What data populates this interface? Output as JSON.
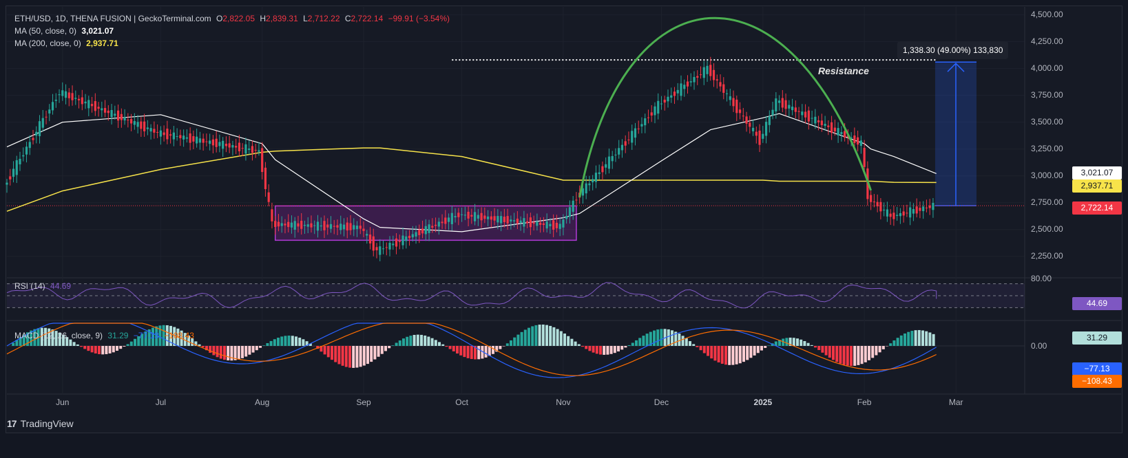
{
  "header": {
    "symbol": "ETH/USD, 1D, THENA FUSION | GeckoTerminal.com",
    "open_label": "O",
    "open": "2,822.05",
    "high_label": "H",
    "high": "2,839.31",
    "low_label": "L",
    "low": "2,712.22",
    "close_label": "C",
    "close": "2,722.14",
    "change": "−99.91 (−3.54%)",
    "ma50_label": "MA (50, close, 0)",
    "ma50_value": "3,021.07",
    "ma200_label": "MA (200, close, 0)",
    "ma200_value": "2,937.71"
  },
  "price_axis": [
    "4,500.00",
    "4,250.00",
    "4,000.00",
    "3,750.00",
    "3,500.00",
    "3,250.00",
    "3,000.00",
    "2,750.00",
    "2,500.00",
    "2,250.00"
  ],
  "price_tags": {
    "ma50": "3,021.07",
    "ma200": "2,937.71",
    "last": "2,722.14",
    "rsi": "44.69",
    "macd": "31.29",
    "macd_line": "−77.13",
    "signal_line": "−108.43"
  },
  "rsi": {
    "label": "RSI (14)",
    "value": "44.69",
    "axis_top": "80.00"
  },
  "macd": {
    "label": "MACD (12, 26, close, 9)",
    "hist": "31.29",
    "macd_value": "−77.13",
    "signal_value": "−108.43",
    "axis_zero": "0.00"
  },
  "time_axis": [
    "Jun",
    "Jul",
    "Aug",
    "Sep",
    "Oct",
    "Nov",
    "Dec",
    "2025",
    "Feb",
    "Mar"
  ],
  "annotations": {
    "resistance": "Resistance",
    "measure": "1,338.30 (49.00%) 133,830"
  },
  "footer": {
    "brand": "TradingView"
  },
  "colors": {
    "background": "#161a25",
    "up": "#26a69a",
    "down": "#f23645",
    "ma50": "#ffffff",
    "ma200": "#f7e34a",
    "rsi": "#7e57c2",
    "macd": "#2962ff",
    "signal": "#ff6d00",
    "arc": "#4caf50",
    "range_box": "#9c27b0",
    "measure": "#2962ff"
  },
  "chart_data": {
    "type": "line",
    "title": "ETH/USD, 1D, THENA FUSION | GeckoTerminal.com",
    "x": [
      "2024-05-15",
      "2024-06-01",
      "2024-07-01",
      "2024-08-01",
      "2024-08-05",
      "2024-09-01",
      "2024-09-06",
      "2024-10-01",
      "2024-11-01",
      "2024-11-06",
      "2024-12-01",
      "2024-12-16",
      "2025-01-01",
      "2025-01-06",
      "2025-02-01",
      "2025-02-03",
      "2025-02-10",
      "2025-02-23"
    ],
    "series": [
      {
        "name": "ETH/USD close",
        "values": [
          2900,
          3780,
          3400,
          3230,
          2550,
          2520,
          2300,
          2640,
          2530,
          2800,
          3660,
          4000,
          3330,
          3700,
          3300,
          2800,
          2620,
          2722
        ]
      },
      {
        "name": "MA (50, close, 0)",
        "values": [
          3270,
          3500,
          3570,
          3300,
          3150,
          2600,
          2520,
          2480,
          2610,
          2650,
          3140,
          3430,
          3540,
          3580,
          3300,
          3250,
          3180,
          3021
        ]
      },
      {
        "name": "MA (200, close, 0)",
        "values": [
          2670,
          2860,
          3060,
          3220,
          3230,
          3260,
          3260,
          3180,
          2960,
          2960,
          2960,
          2960,
          2960,
          2950,
          2950,
          2950,
          2940,
          2938
        ]
      }
    ],
    "ylim": [
      2050,
      4600
    ],
    "ohlc_last": {
      "open": 2822.05,
      "high": 2839.31,
      "low": 2712.22,
      "close": 2722.14,
      "change": -99.91,
      "change_pct": -3.54
    },
    "resistance_level": 4080,
    "range_box": {
      "from": "2024-08-05",
      "to": "2024-11-05",
      "low": 2400,
      "high": 2720
    },
    "measured_move": {
      "from": 2722.14,
      "to": 4060.44,
      "change": 1338.3,
      "change_pct": 49.0
    },
    "rsi_last": 44.69,
    "macd_last": {
      "hist": 31.29,
      "macd": -77.13,
      "signal": -108.43
    }
  }
}
